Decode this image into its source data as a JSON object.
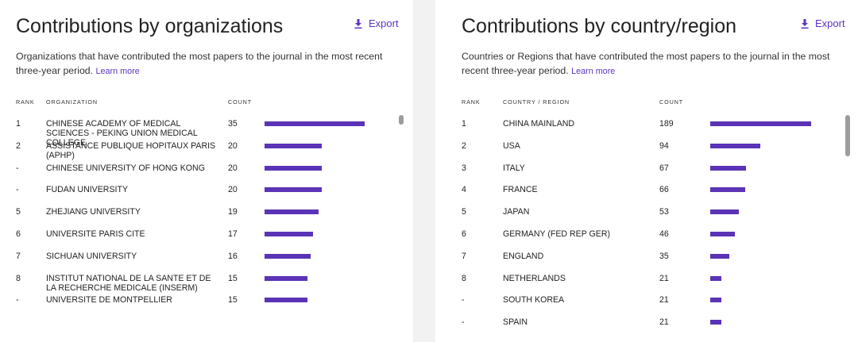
{
  "organizations": {
    "title": "Contributions by organizations",
    "export_label": "Export",
    "description": "Organizations that have contributed the most papers to the journal in the most recent three-year period.",
    "learn_more": "Learn more",
    "columns": {
      "rank": "RANK",
      "name": "ORGANIZATION",
      "count": "COUNT"
    },
    "max_count": 35,
    "rows": [
      {
        "rank": "1",
        "name": "CHINESE ACADEMY OF MEDICAL SCIENCES - PEKING UNION MEDICAL COLLEGE",
        "count": 35
      },
      {
        "rank": "2",
        "name": "ASSISTANCE PUBLIQUE HOPITAUX PARIS (APHP)",
        "count": 20
      },
      {
        "rank": "-",
        "name": "CHINESE UNIVERSITY OF HONG KONG",
        "count": 20
      },
      {
        "rank": "-",
        "name": "FUDAN UNIVERSITY",
        "count": 20
      },
      {
        "rank": "5",
        "name": "ZHEJIANG UNIVERSITY",
        "count": 19
      },
      {
        "rank": "6",
        "name": "UNIVERSITE PARIS CITE",
        "count": 17
      },
      {
        "rank": "7",
        "name": "SICHUAN UNIVERSITY",
        "count": 16
      },
      {
        "rank": "8",
        "name": "INSTITUT NATIONAL DE LA SANTE ET DE LA RECHERCHE MEDICALE (INSERM)",
        "count": 15
      },
      {
        "rank": "-",
        "name": "UNIVERSITE DE MONTPELLIER",
        "count": 15
      }
    ]
  },
  "countries": {
    "title": "Contributions by country/region",
    "export_label": "Export",
    "description": "Countries or Regions that have contributed the most papers to the journal in the most recent three-year period.",
    "learn_more": "Learn more",
    "columns": {
      "rank": "RANK",
      "name": "COUNTRY / REGION",
      "count": "COUNT"
    },
    "max_count": 189,
    "rows": [
      {
        "rank": "1",
        "name": "CHINA MAINLAND",
        "count": 189
      },
      {
        "rank": "2",
        "name": "USA",
        "count": 94
      },
      {
        "rank": "3",
        "name": "ITALY",
        "count": 67
      },
      {
        "rank": "4",
        "name": "FRANCE",
        "count": 66
      },
      {
        "rank": "5",
        "name": "JAPAN",
        "count": 53
      },
      {
        "rank": "6",
        "name": "GERMANY (FED REP GER)",
        "count": 46
      },
      {
        "rank": "7",
        "name": "ENGLAND",
        "count": 35
      },
      {
        "rank": "8",
        "name": "NETHERLANDS",
        "count": 21
      },
      {
        "rank": "-",
        "name": "SOUTH KOREA",
        "count": 21
      },
      {
        "rank": "-",
        "name": "SPAIN",
        "count": 21
      }
    ]
  },
  "colors": {
    "accent": "#5e33bf",
    "bar": "#5b33b6",
    "scrollbar": "#9c9c9c",
    "page_bg": "#f2f2f2"
  },
  "icons": {
    "export": "download-icon"
  }
}
